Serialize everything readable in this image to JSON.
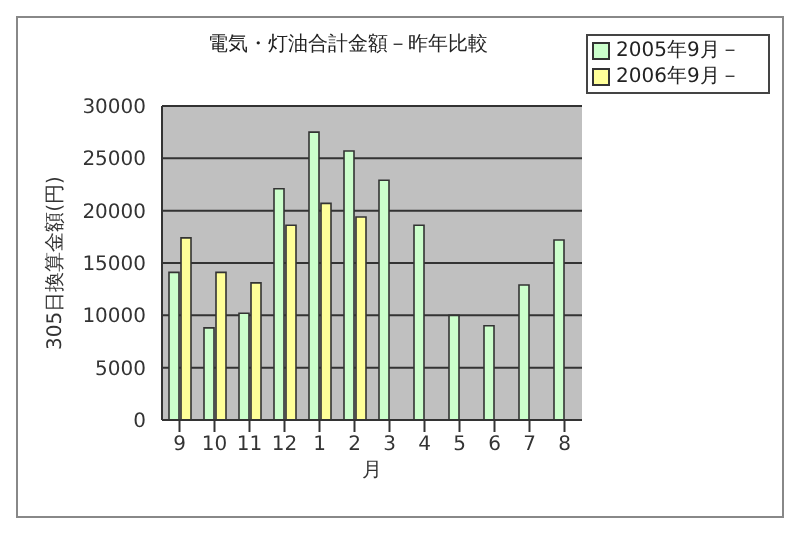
{
  "chart_data": {
    "type": "bar",
    "title": "電気・灯油合計金額－昨年比較",
    "xlabel": "月",
    "ylabel": "305日換算金額(円)",
    "categories": [
      "9",
      "10",
      "11",
      "12",
      "1",
      "2",
      "3",
      "4",
      "5",
      "6",
      "7",
      "8"
    ],
    "series": [
      {
        "name": "2005年9月－",
        "color": "#ccffcc",
        "values": [
          14100,
          8800,
          10200,
          22100,
          27500,
          25700,
          22900,
          18600,
          10000,
          9000,
          12900,
          17200
        ]
      },
      {
        "name": "2006年9月－",
        "color": "#ffff99",
        "values": [
          17400,
          14100,
          13100,
          18600,
          20700,
          19400,
          null,
          null,
          null,
          null,
          null,
          null
        ]
      }
    ],
    "ylim": [
      0,
      30000
    ],
    "yticks": [
      0,
      5000,
      10000,
      15000,
      20000,
      25000,
      30000
    ],
    "grid": "y",
    "legend": "top right"
  }
}
